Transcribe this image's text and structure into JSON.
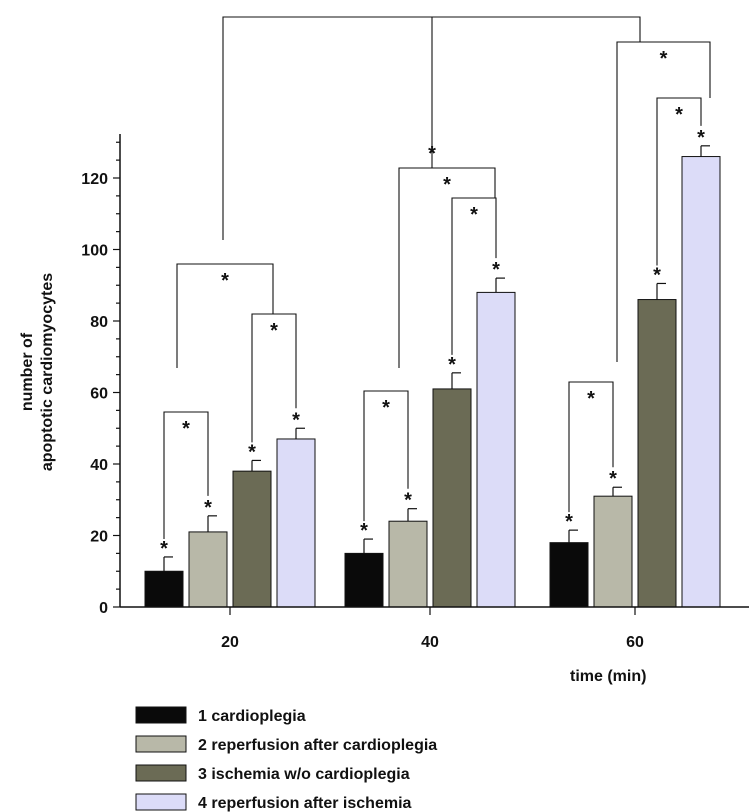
{
  "chart_data": {
    "type": "bar",
    "title": "",
    "xlabel": "time (min)",
    "ylabel_lines": [
      "number of",
      "apoptotic cardiomyocytes"
    ],
    "categories": [
      "20",
      "40",
      "60"
    ],
    "ylim": [
      0,
      130
    ],
    "yticks": [
      0,
      20,
      40,
      60,
      80,
      100,
      120
    ],
    "grid": false,
    "legend_position": "bottom-left",
    "series": [
      {
        "name": "1 cardioplegia",
        "color": "#0a0a0a",
        "values": [
          10,
          15,
          18
        ],
        "errors": [
          4,
          4,
          3.5
        ]
      },
      {
        "name": "2 reperfusion after cardioplegia",
        "color": "#b8b8a8",
        "values": [
          21,
          24,
          31
        ],
        "errors": [
          4.5,
          3.5,
          2.5
        ]
      },
      {
        "name": "3 ischemia w/o cardioplegia",
        "color": "#6b6b55",
        "values": [
          38,
          61,
          86
        ],
        "errors": [
          3,
          4.5,
          4.5
        ]
      },
      {
        "name": "4 reperfusion after ischemia",
        "color": "#dcdcf8",
        "values": [
          47,
          88,
          126
        ],
        "errors": [
          3,
          4,
          3
        ]
      }
    ],
    "significance_marker": "*"
  }
}
